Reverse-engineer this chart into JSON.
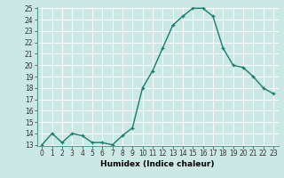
{
  "x": [
    0,
    1,
    2,
    3,
    4,
    5,
    6,
    7,
    8,
    9,
    10,
    11,
    12,
    13,
    14,
    15,
    16,
    17,
    18,
    19,
    20,
    21,
    22,
    23
  ],
  "y": [
    13,
    14,
    13.2,
    14,
    13.8,
    13.2,
    13.2,
    13,
    13.8,
    14.5,
    18,
    19.5,
    21.5,
    23.5,
    24.3,
    25,
    25,
    24.3,
    21.5,
    20,
    19.8,
    19,
    18,
    17.5
  ],
  "line_color": "#1a7a6e",
  "marker": "+",
  "marker_color": "#1a7a6e",
  "bg_color": "#cce8e4",
  "grid_color": "#b0d8d2",
  "xlabel": "Humidex (Indice chaleur)",
  "ylim": [
    13,
    25
  ],
  "xlim": [
    -0.5,
    23.5
  ],
  "yticks": [
    13,
    14,
    15,
    16,
    17,
    18,
    19,
    20,
    21,
    22,
    23,
    24,
    25
  ],
  "xticks": [
    0,
    1,
    2,
    3,
    4,
    5,
    6,
    7,
    8,
    9,
    10,
    11,
    12,
    13,
    14,
    15,
    16,
    17,
    18,
    19,
    20,
    21,
    22,
    23
  ],
  "xlabel_fontsize": 6.5,
  "tick_fontsize": 5.5,
  "line_width": 1.0,
  "marker_size": 3.5
}
